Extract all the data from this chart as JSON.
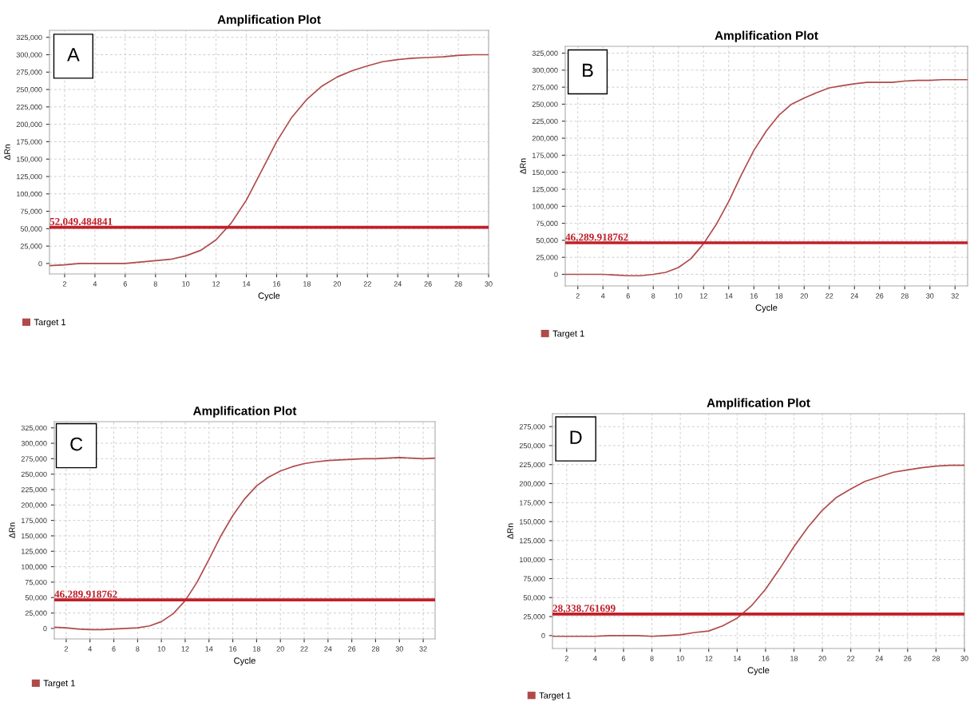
{
  "chart_data": [
    {
      "type": "line",
      "title": "Amplification Plot",
      "xlabel": "Cycle",
      "ylabel": "ΔRn",
      "annotations": [
        "A"
      ],
      "legend": "bottom left",
      "grid": true,
      "line_style": "solid",
      "x": [
        1,
        2,
        3,
        4,
        5,
        6,
        7,
        8,
        9,
        10,
        11,
        12,
        13,
        14,
        15,
        16,
        17,
        18,
        19,
        20,
        21,
        22,
        23,
        24,
        25,
        26,
        27,
        28,
        29,
        30
      ],
      "series": [
        {
          "name": "Target 1",
          "color": "#b04a4a",
          "values": [
            -3000,
            -2000,
            0,
            0,
            0,
            0,
            2000,
            4000,
            6000,
            11000,
            19000,
            34000,
            58000,
            91000,
            133000,
            175000,
            210000,
            236000,
            255000,
            268000,
            277000,
            284000,
            290000,
            293000,
            295000,
            296000,
            297000,
            299000,
            300000,
            300000
          ]
        }
      ],
      "ref_lines": [
        {
          "axis": "y",
          "value": 52049.484841,
          "label": "52,049.484841",
          "color": "#c0202a"
        }
      ],
      "xlim": [
        1,
        30
      ],
      "xticks": [
        2,
        4,
        6,
        8,
        10,
        12,
        14,
        16,
        18,
        20,
        22,
        24,
        26,
        28,
        30
      ],
      "ylim": [
        -15000,
        335000
      ],
      "yticks": [
        {
          "value": 0,
          "label": "0"
        },
        {
          "value": 25000,
          "label": "25,000"
        },
        {
          "value": 50000,
          "label": "50,000"
        },
        {
          "value": 75000,
          "label": "75,000"
        },
        {
          "value": 100000,
          "label": "100,000"
        },
        {
          "value": 125000,
          "label": "125,000"
        },
        {
          "value": 150000,
          "label": "150,000"
        },
        {
          "value": 175000,
          "label": "175,000"
        },
        {
          "value": 200000,
          "label": "200,000"
        },
        {
          "value": 225000,
          "label": "225,000"
        },
        {
          "value": 250000,
          "label": "250,000"
        },
        {
          "value": 275000,
          "label": "275,000"
        },
        {
          "value": 300000,
          "label": "300,000"
        },
        {
          "value": 325000,
          "label": "325,000"
        }
      ]
    },
    {
      "type": "line",
      "title": "Amplification Plot",
      "xlabel": "Cycle",
      "ylabel": "ΔRn",
      "annotations": [
        "B"
      ],
      "legend": "bottom left",
      "grid": true,
      "line_style": "solid",
      "x": [
        1,
        2,
        3,
        4,
        5,
        6,
        7,
        8,
        9,
        10,
        11,
        12,
        13,
        14,
        15,
        16,
        17,
        18,
        19,
        20,
        21,
        22,
        23,
        24,
        25,
        26,
        27,
        28,
        29,
        30,
        31,
        32,
        33
      ],
      "series": [
        {
          "name": "Target 1",
          "color": "#b04a4a",
          "values": [
            0,
            0,
            0,
            0,
            -1000,
            -2000,
            -2000,
            0,
            3000,
            10000,
            23000,
            45000,
            73000,
            107000,
            146000,
            182000,
            211000,
            234000,
            250000,
            259000,
            267000,
            274000,
            277000,
            280000,
            282000,
            282000,
            282000,
            284000,
            285000,
            285000,
            286000,
            286000,
            286000
          ]
        }
      ],
      "ref_lines": [
        {
          "axis": "y",
          "value": 46289.918762,
          "label": "46,289.918762",
          "color": "#c0202a"
        }
      ],
      "xlim": [
        1,
        33
      ],
      "xticks": [
        2,
        4,
        6,
        8,
        10,
        12,
        14,
        16,
        18,
        20,
        22,
        24,
        26,
        28,
        30,
        32
      ],
      "ylim": [
        -17000,
        335000
      ],
      "yticks": [
        {
          "value": 0,
          "label": "0"
        },
        {
          "value": 25000,
          "label": "25,000"
        },
        {
          "value": 50000,
          "label": "50,000"
        },
        {
          "value": 75000,
          "label": "75,000"
        },
        {
          "value": 100000,
          "label": "100,000"
        },
        {
          "value": 125000,
          "label": "125,000"
        },
        {
          "value": 150000,
          "label": "150,000"
        },
        {
          "value": 175000,
          "label": "175,000"
        },
        {
          "value": 200000,
          "label": "200,000"
        },
        {
          "value": 225000,
          "label": "225,000"
        },
        {
          "value": 250000,
          "label": "250,000"
        },
        {
          "value": 275000,
          "label": "275,000"
        },
        {
          "value": 300000,
          "label": "300,000"
        },
        {
          "value": 325000,
          "label": "325,000"
        }
      ]
    },
    {
      "type": "line",
      "title": "Amplification Plot",
      "xlabel": "Cycle",
      "ylabel": "ΔRn",
      "annotations": [
        "C"
      ],
      "legend": "bottom left",
      "grid": true,
      "line_style": "solid",
      "x": [
        1,
        2,
        3,
        4,
        5,
        6,
        7,
        8,
        9,
        10,
        11,
        12,
        13,
        14,
        15,
        16,
        17,
        18,
        19,
        20,
        21,
        22,
        23,
        24,
        25,
        26,
        27,
        28,
        29,
        30,
        31,
        32,
        33
      ],
      "series": [
        {
          "name": "Target 1",
          "color": "#b04a4a",
          "values": [
            2000,
            1000,
            -1000,
            -2000,
            -2000,
            -1000,
            0,
            1000,
            4000,
            11000,
            24000,
            45000,
            75000,
            112000,
            150000,
            183000,
            210000,
            231000,
            245000,
            255000,
            262000,
            267000,
            270000,
            272000,
            273000,
            274000,
            275000,
            275000,
            276000,
            277000,
            276000,
            275000,
            276000
          ]
        }
      ],
      "ref_lines": [
        {
          "axis": "y",
          "value": 46289.918762,
          "label": "46,289.918762",
          "color": "#c0202a"
        }
      ],
      "xlim": [
        1,
        33
      ],
      "xticks": [
        2,
        4,
        6,
        8,
        10,
        12,
        14,
        16,
        18,
        20,
        22,
        24,
        26,
        28,
        30,
        32
      ],
      "ylim": [
        -17000,
        335000
      ],
      "yticks": [
        {
          "value": 0,
          "label": "0"
        },
        {
          "value": 25000,
          "label": "25,000"
        },
        {
          "value": 50000,
          "label": "50,000"
        },
        {
          "value": 75000,
          "label": "75,000"
        },
        {
          "value": 100000,
          "label": "100,000"
        },
        {
          "value": 125000,
          "label": "125,000"
        },
        {
          "value": 150000,
          "label": "150,000"
        },
        {
          "value": 175000,
          "label": "175,000"
        },
        {
          "value": 200000,
          "label": "200,000"
        },
        {
          "value": 225000,
          "label": "225,000"
        },
        {
          "value": 250000,
          "label": "250,000"
        },
        {
          "value": 275000,
          "label": "275,000"
        },
        {
          "value": 300000,
          "label": "300,000"
        },
        {
          "value": 325000,
          "label": "325,000"
        }
      ]
    },
    {
      "type": "line",
      "title": "Amplification Plot",
      "xlabel": "Cycle",
      "ylabel": "ΔRn",
      "annotations": [
        "D"
      ],
      "legend": "bottom left",
      "grid": true,
      "line_style": "solid",
      "x": [
        1,
        2,
        3,
        4,
        5,
        6,
        7,
        8,
        9,
        10,
        11,
        12,
        13,
        14,
        15,
        16,
        17,
        18,
        19,
        20,
        21,
        22,
        23,
        24,
        25,
        26,
        27,
        28,
        29,
        30
      ],
      "series": [
        {
          "name": "Target 1",
          "color": "#b04a4a",
          "values": [
            -1000,
            -1000,
            -1000,
            -1000,
            0,
            0,
            0,
            -1000,
            0,
            1000,
            4000,
            6000,
            13000,
            23000,
            39000,
            61000,
            88000,
            117000,
            143000,
            165000,
            182000,
            193000,
            203000,
            209000,
            215000,
            218000,
            221000,
            223000,
            224000,
            224000
          ]
        }
      ],
      "ref_lines": [
        {
          "axis": "y",
          "value": 28338.761699,
          "label": "28,338.761699",
          "color": "#c0202a"
        }
      ],
      "xlim": [
        1,
        30
      ],
      "xticks": [
        2,
        4,
        6,
        8,
        10,
        12,
        14,
        16,
        18,
        20,
        22,
        24,
        26,
        28,
        30
      ],
      "ylim": [
        -17000,
        292000
      ],
      "yticks": [
        {
          "value": 0,
          "label": "0"
        },
        {
          "value": 25000,
          "label": "25,000"
        },
        {
          "value": 50000,
          "label": "50,000"
        },
        {
          "value": 75000,
          "label": "75,000"
        },
        {
          "value": 100000,
          "label": "100,000"
        },
        {
          "value": 125000,
          "label": "125,000"
        },
        {
          "value": 150000,
          "label": "150,000"
        },
        {
          "value": 175000,
          "label": "175,000"
        },
        {
          "value": 200000,
          "label": "200,000"
        },
        {
          "value": 225000,
          "label": "225,000"
        },
        {
          "value": 250000,
          "label": "250,000"
        },
        {
          "value": 275000,
          "label": "275,000"
        }
      ]
    }
  ]
}
